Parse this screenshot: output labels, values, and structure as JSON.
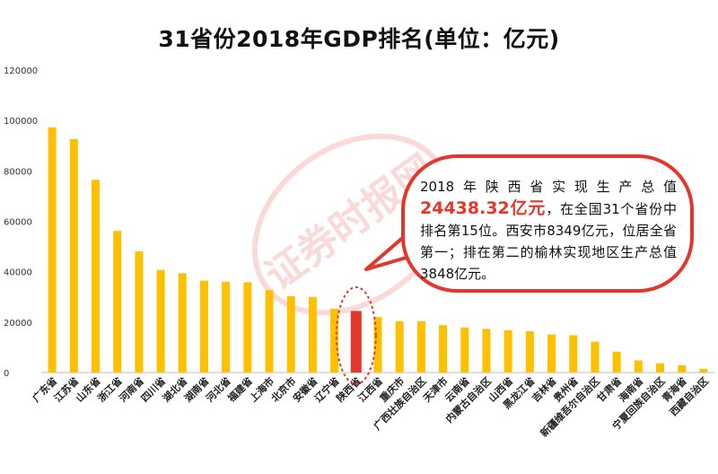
{
  "chart_data": {
    "type": "bar",
    "title": "31省份2018年GDP排名(单位：亿元)",
    "ylim": [
      0,
      120000
    ],
    "yticks": [
      0,
      20000,
      40000,
      60000,
      80000,
      100000,
      120000
    ],
    "grid": false,
    "categories": [
      "广东省",
      "江苏省",
      "山东省",
      "浙江省",
      "河南省",
      "四川省",
      "湖北省",
      "湖南省",
      "河北省",
      "福建省",
      "上海市",
      "北京市",
      "安徽省",
      "辽宁省",
      "陕西省",
      "江西省",
      "重庆市",
      "广西壮族自治区",
      "天津市",
      "云南省",
      "内蒙古自治区",
      "山西省",
      "黑龙江省",
      "吉林省",
      "贵州省",
      "新疆维吾尔自治区",
      "甘肃省",
      "海南省",
      "宁夏回族自治区",
      "青海省",
      "西藏自治区"
    ],
    "values": [
      97278,
      92595,
      76469,
      56197,
      48055,
      40678,
      39366,
      36426,
      36010,
      35804,
      32680,
      30320,
      30007,
      25315,
      24438,
      21985,
      20363,
      20353,
      18810,
      17881,
      17289,
      16818,
      16362,
      15075,
      14806,
      12199,
      8246,
      4832,
      3705,
      2865,
      1478
    ],
    "highlight_index": 14,
    "colors": {
      "bar": "#ffc000",
      "highlight": "#e5362c",
      "ring": "#e5362c"
    }
  },
  "callout": {
    "line1": "2018年陕西省实现生产总值",
    "value": "24438.32亿元",
    "line2": "，在全国31个省份中排名第15位。西安市8349亿元，位居全省第一；排在第二的榆林实现地区生产总值3848亿元。"
  },
  "watermark": "证券时报网 stcn.com"
}
